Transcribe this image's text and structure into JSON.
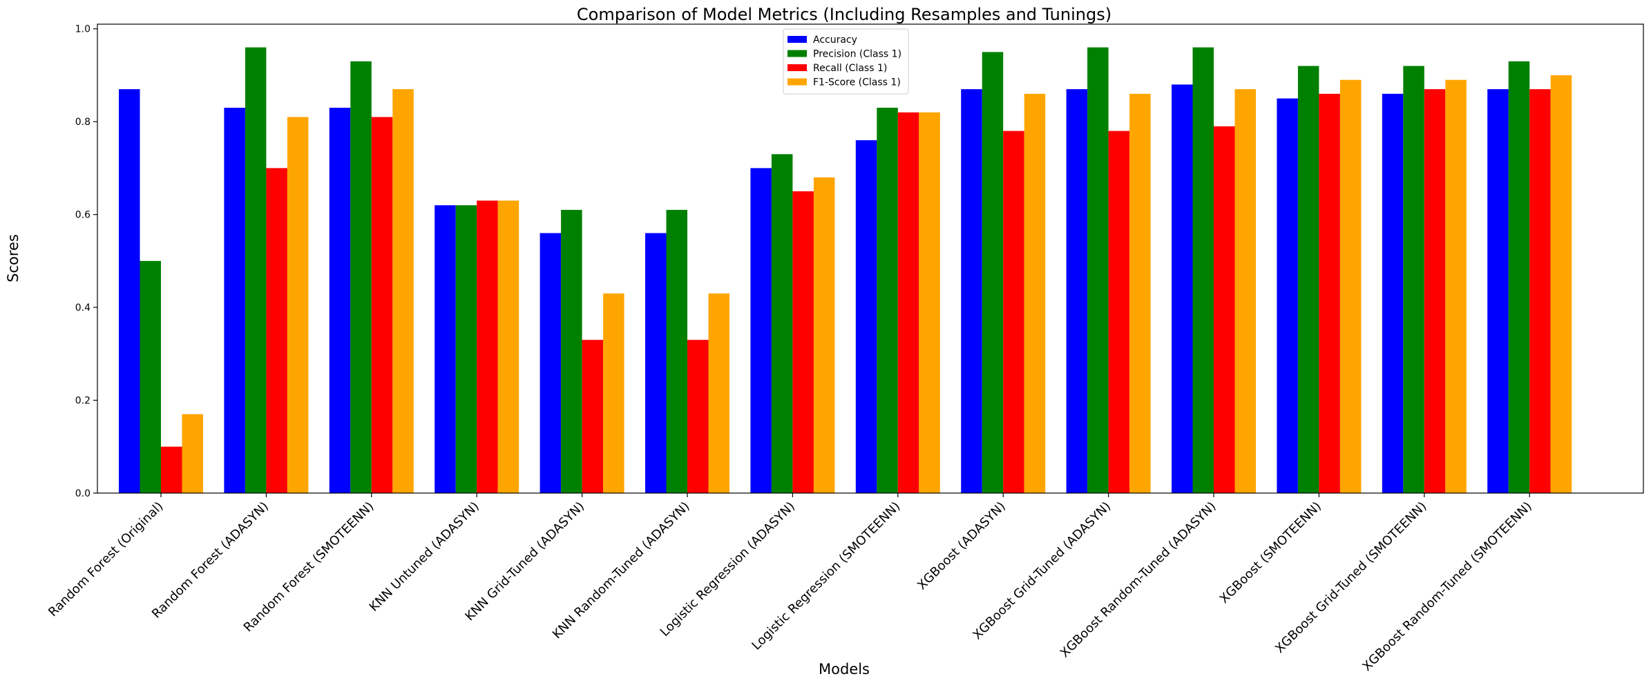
{
  "chart_data": {
    "type": "bar",
    "title": "Comparison of Model Metrics (Including Resamples and Tunings)",
    "xlabel": "Models",
    "ylabel": "Scores",
    "ylim": [
      0,
      1.01
    ],
    "yticks": [
      "0.0",
      "0.2",
      "0.4",
      "0.6",
      "0.8",
      "1.0"
    ],
    "grid": false,
    "legend_position": "top-center",
    "categories": [
      "Random Forest (Original)",
      "Random Forest (ADASYN)",
      "Random Forest (SMOTEENN)",
      "KNN Untuned (ADASYN)",
      "KNN Grid-Tuned (ADASYN)",
      "KNN Random-Tuned (ADASYN)",
      "Logistic Regression (ADASYN)",
      "Logistic Regression (SMOTEENN)",
      "XGBoost (ADASYN)",
      "XGBoost Grid-Tuned (ADASYN)",
      "XGBoost Random-Tuned (ADASYN)",
      "XGBoost (SMOTEENN)",
      "XGBoost Grid-Tuned (SMOTEENN)",
      "XGBoost Random-Tuned (SMOTEENN)"
    ],
    "series": [
      {
        "name": "Accuracy",
        "color": "#0000ff",
        "values": [
          0.87,
          0.83,
          0.83,
          0.62,
          0.56,
          0.56,
          0.7,
          0.76,
          0.87,
          0.87,
          0.88,
          0.85,
          0.86,
          0.87
        ]
      },
      {
        "name": "Precision (Class 1)",
        "color": "#008000",
        "values": [
          0.5,
          0.96,
          0.93,
          0.62,
          0.61,
          0.61,
          0.73,
          0.83,
          0.95,
          0.96,
          0.96,
          0.92,
          0.92,
          0.93
        ]
      },
      {
        "name": "Recall (Class 1)",
        "color": "#ff0000",
        "values": [
          0.1,
          0.7,
          0.81,
          0.63,
          0.33,
          0.33,
          0.65,
          0.82,
          0.78,
          0.78,
          0.79,
          0.86,
          0.87,
          0.87
        ]
      },
      {
        "name": "F1-Score (Class 1)",
        "color": "#ffa500",
        "values": [
          0.17,
          0.81,
          0.87,
          0.63,
          0.43,
          0.43,
          0.68,
          0.82,
          0.86,
          0.86,
          0.87,
          0.89,
          0.89,
          0.9
        ]
      }
    ]
  }
}
